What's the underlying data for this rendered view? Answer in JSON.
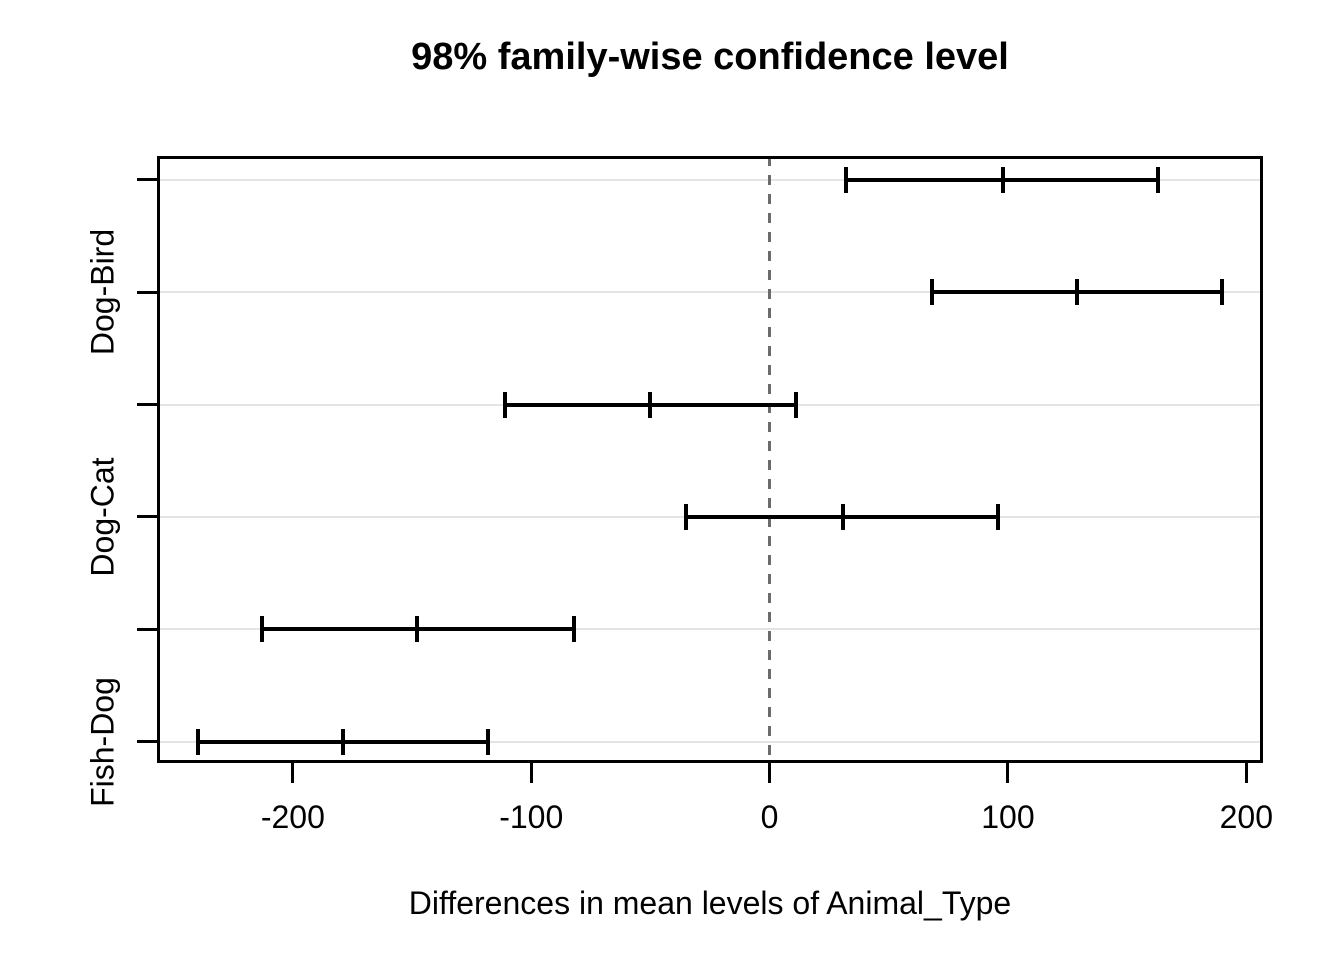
{
  "chart_data": {
    "type": "scatter",
    "subtype": "tukey-hsd-confidence-intervals",
    "title": "98% family-wise confidence level",
    "xlabel": "Differences in mean levels of Animal_Type",
    "ylabel": "",
    "xlim": [
      -257,
      207
    ],
    "grid": true,
    "zero_line": {
      "value": 0,
      "style": "dashed"
    },
    "x_ticks": [
      {
        "value": -200,
        "label": "-200"
      },
      {
        "value": -100,
        "label": "-100"
      },
      {
        "value": 0,
        "label": "0"
      },
      {
        "value": 100,
        "label": "100"
      },
      {
        "value": 200,
        "label": "200"
      }
    ],
    "comparisons": [
      {
        "label": "",
        "lwr": 32,
        "mid": 98,
        "upr": 163
      },
      {
        "label": "Dog-Bird",
        "lwr": 68,
        "mid": 129,
        "upr": 190
      },
      {
        "label": "",
        "lwr": -111,
        "mid": -50,
        "upr": 11
      },
      {
        "label": "Dog-Cat",
        "lwr": -35,
        "mid": 31,
        "upr": 96
      },
      {
        "label": "",
        "lwr": -213,
        "mid": -148,
        "upr": -82
      },
      {
        "label": "Fish-Dog",
        "lwr": -240,
        "mid": -179,
        "upr": -118
      }
    ],
    "layout": {
      "row_top_frac": 0.0395,
      "row_step_frac": 0.18502,
      "legend": "none"
    },
    "colors": {
      "interval": "#000000",
      "grid": "#e4e4e4",
      "zero_line": "#6b6b6b",
      "frame": "#000000",
      "text": "#000000"
    }
  }
}
